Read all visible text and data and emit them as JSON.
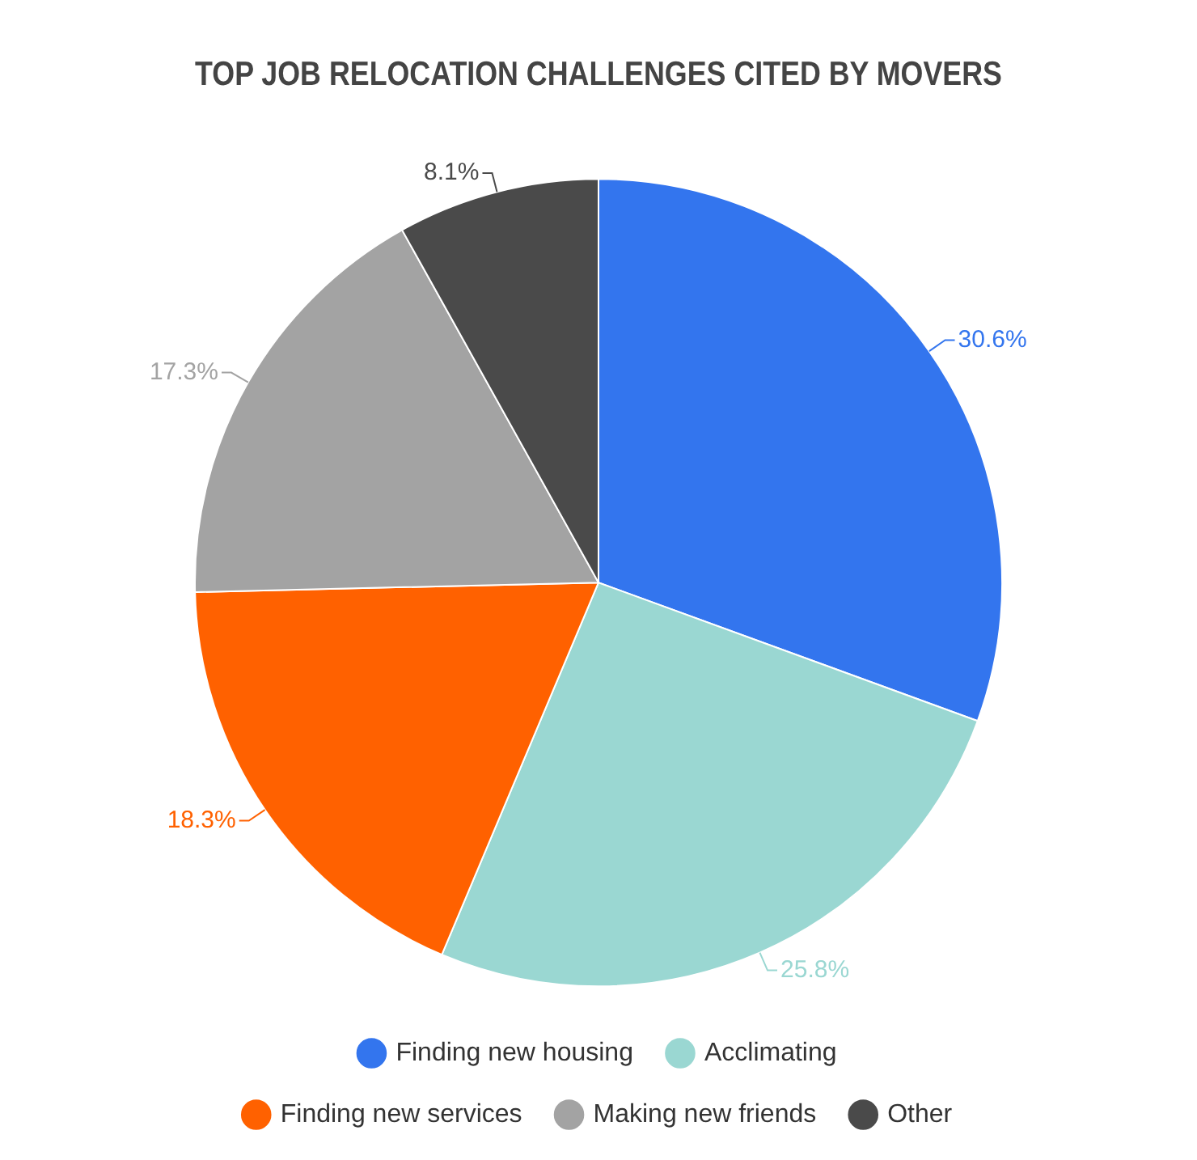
{
  "chart_data": {
    "type": "pie",
    "title": "TOP JOB RELOCATION CHALLENGES CITED BY MOVERS",
    "categories": [
      "Finding new housing",
      "Acclimating",
      "Finding new services",
      "Making new friends",
      "Other"
    ],
    "values": [
      30.6,
      25.8,
      18.3,
      17.3,
      8.1
    ],
    "value_labels": [
      "30.6%",
      "25.8%",
      "18.3%",
      "17.3%",
      "8.1%"
    ],
    "colors": [
      "#3375ee",
      "#9ad7d2",
      "#ff6100",
      "#a3a3a3",
      "#4a4a4a"
    ],
    "legend": "bottom"
  }
}
